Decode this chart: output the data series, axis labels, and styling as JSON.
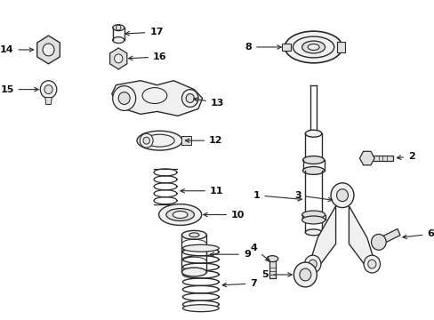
{
  "background_color": "#ffffff",
  "line_color": "#2a2a2a",
  "fig_width": 4.89,
  "fig_height": 3.6,
  "dpi": 100,
  "label_fontsize": 8.0
}
